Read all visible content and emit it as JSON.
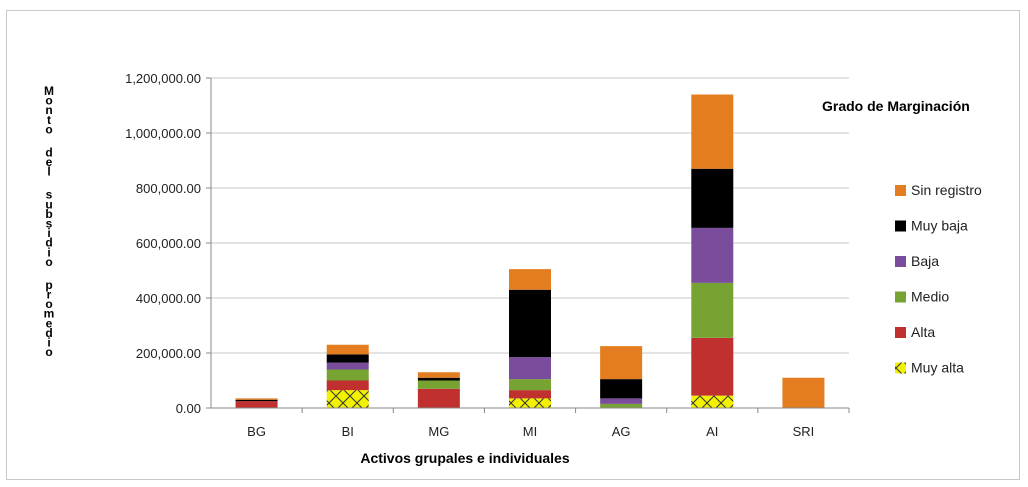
{
  "chart_data": {
    "type": "bar",
    "stacked": true,
    "title": "",
    "legend_title": "Grado de Marginación",
    "legend_position": "right",
    "xlabel": "Activos grupales e individuales",
    "ylabel": "Monto del subsidio promedio",
    "ylim": [
      0,
      1200000
    ],
    "yticks": [
      0,
      200000,
      400000,
      600000,
      800000,
      1000000,
      1200000
    ],
    "ytick_labels": [
      "0.00",
      "200,000.00",
      "400,000.00",
      "600,000.00",
      "800,000.00",
      "1,000,000.00",
      "1,200,000.00"
    ],
    "grid": true,
    "categories": [
      "BG",
      "BI",
      "MG",
      "MI",
      "AG",
      "AI",
      "SRI"
    ],
    "series": [
      {
        "name": "Muy alta",
        "color": "#f2f200",
        "pattern": "crosshatch",
        "values": [
          0,
          65000,
          0,
          35000,
          0,
          45000,
          0
        ]
      },
      {
        "name": "Alta",
        "color": "#c0302e",
        "values": [
          25000,
          35000,
          70000,
          30000,
          0,
          210000,
          0
        ]
      },
      {
        "name": "Medio",
        "color": "#77a333",
        "values": [
          0,
          40000,
          30000,
          40000,
          15000,
          200000,
          0
        ]
      },
      {
        "name": "Baja",
        "color": "#7a4d9c",
        "values": [
          0,
          25000,
          0,
          80000,
          20000,
          200000,
          0
        ]
      },
      {
        "name": "Muy baja",
        "color": "#000000",
        "values": [
          5000,
          30000,
          10000,
          245000,
          70000,
          215000,
          0
        ]
      },
      {
        "name": "Sin registro",
        "color": "#e47d1f",
        "values": [
          5000,
          35000,
          20000,
          75000,
          120000,
          270000,
          110000
        ]
      }
    ]
  }
}
